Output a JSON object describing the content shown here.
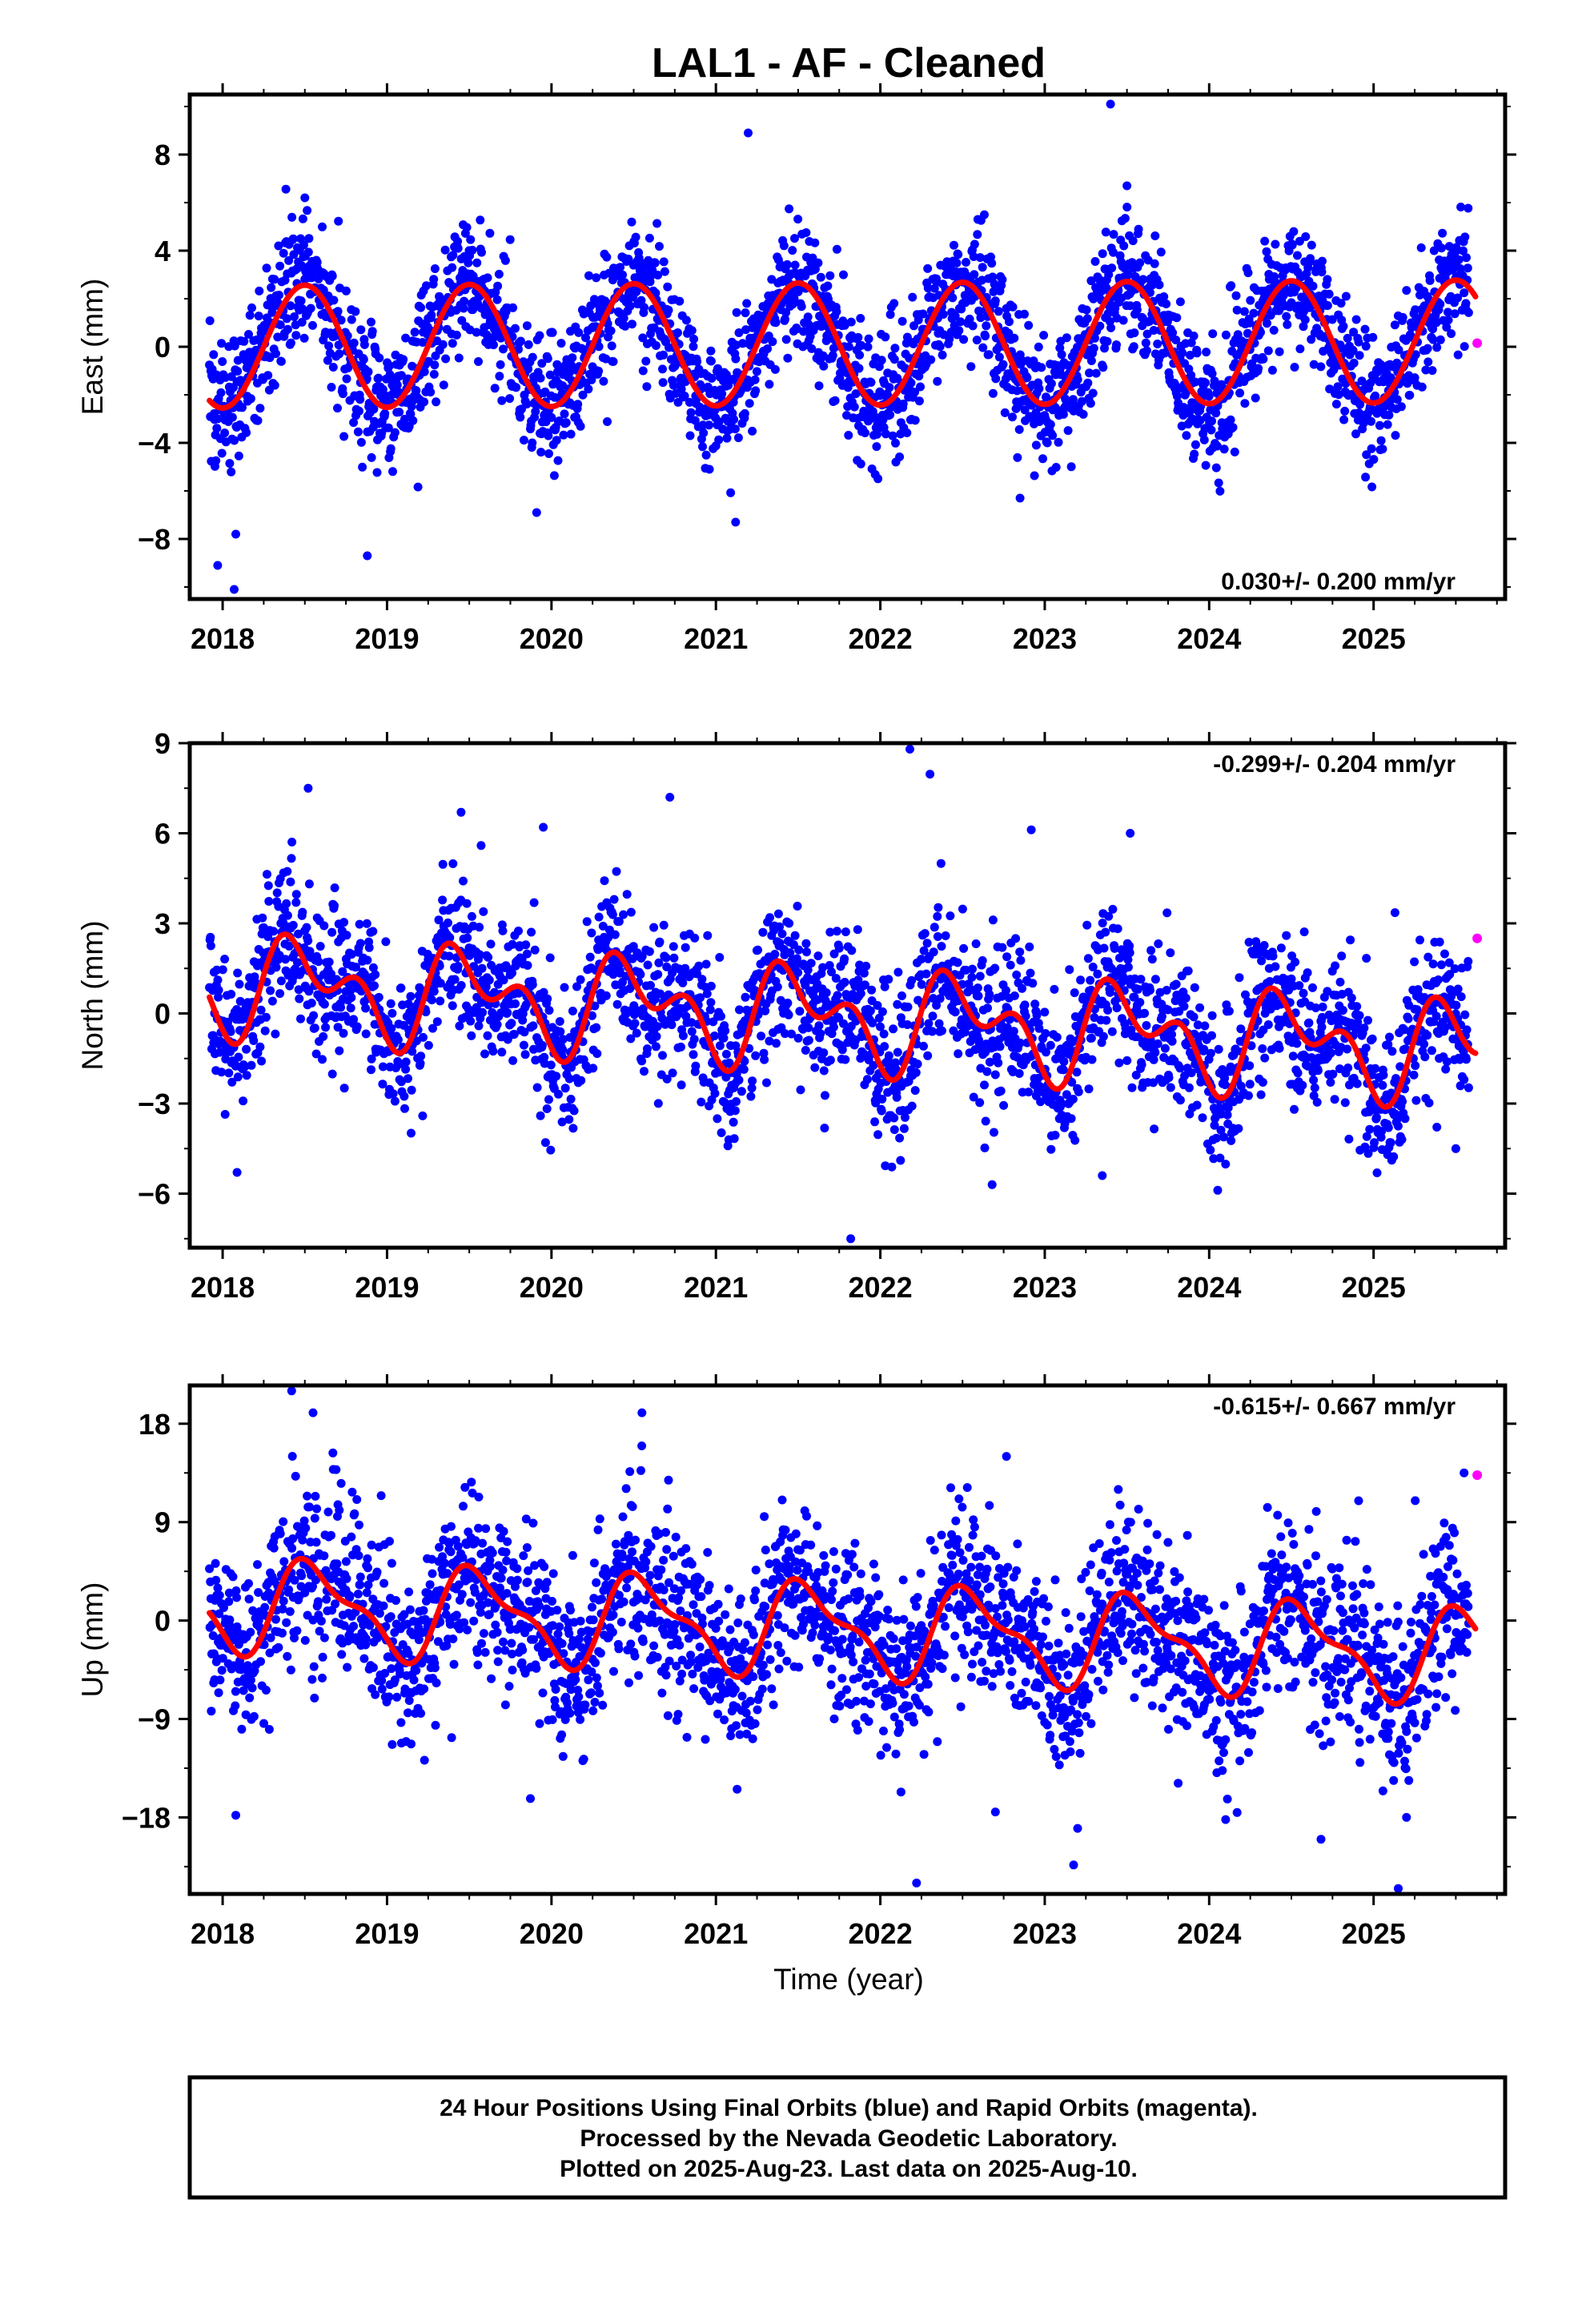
{
  "figure": {
    "title": "LAL1  - AF - Cleaned",
    "footer": [
      "24 Hour Positions Using Final Orbits (blue) and Rapid Orbits (magenta).",
      "Processed by the Nevada Geodetic Laboratory.",
      "Plotted on 2025-Aug-23. Last data on 2025-Aug-10."
    ],
    "colors": {
      "final": "#0000ff",
      "rapid": "#ff00ff",
      "model": "#ff0000",
      "frame": "#000000"
    }
  },
  "chart_data": [
    {
      "type": "scatter",
      "ylabel": "East (mm)",
      "xlabel": "",
      "xlim": [
        2017.8,
        2025.8
      ],
      "ylim": [
        -10.5,
        10.5
      ],
      "xticks": [
        2018,
        2019,
        2020,
        2021,
        2022,
        2023,
        2024,
        2025
      ],
      "yticks": [
        -8,
        -4,
        0,
        4,
        8
      ],
      "ytick_labels": [
        "−8",
        "−4",
        "0",
        "4",
        "8"
      ],
      "rate_text": "0.030+/- 0.200 mm/yr",
      "rate_position": "bottom-right",
      "grid": false,
      "series": [
        {
          "role": "final",
          "model": {
            "trend": 0.03,
            "offset": 0.0,
            "seasonal": [
              [
                1,
                0.0,
                -2.55
              ]
            ],
            "scatter_sd": 1.35,
            "outlier_rate": 0.012
          },
          "start": 2017.92,
          "end": 2025.58,
          "step": 0.0028,
          "outliers": [
            [
              2017.97,
              -9.1
            ],
            [
              2018.07,
              -10.1
            ],
            [
              2018.08,
              -7.8
            ],
            [
              2018.88,
              -8.7
            ],
            [
              2019.91,
              -6.9
            ],
            [
              2021.12,
              -7.3
            ],
            [
              2022.85,
              -6.3
            ],
            [
              2023.4,
              10.1
            ],
            [
              2023.5,
              6.7
            ],
            [
              2018.5,
              6.2
            ]
          ]
        },
        {
          "role": "rapid",
          "points": [
            [
              2025.63,
              0.15
            ]
          ]
        },
        {
          "role": "model",
          "model": {
            "trend": 0.03,
            "offset": 0.0,
            "seasonal": [
              [
                1,
                0.0,
                -2.55
              ]
            ]
          },
          "start": 2017.92,
          "end": 2025.62
        }
      ]
    },
    {
      "type": "scatter",
      "ylabel": "North (mm)",
      "xlabel": "",
      "xlim": [
        2017.8,
        2025.8
      ],
      "ylim": [
        -7.8,
        9.0
      ],
      "xticks": [
        2018,
        2019,
        2020,
        2021,
        2022,
        2023,
        2024,
        2025
      ],
      "yticks": [
        -6,
        -3,
        0,
        3,
        6,
        9
      ],
      "ytick_labels": [
        "−6",
        "−3",
        "0",
        "3",
        "6",
        "9"
      ],
      "rate_text": "-0.299+/- 0.204 mm/yr",
      "rate_position": "top-right",
      "grid": false,
      "series": [
        {
          "role": "final",
          "model": {
            "trend": -0.299,
            "offset": 1.0,
            "seasonal": [
              [
                1,
                0.0,
                -1.2
              ],
              [
                2,
                -0.9,
                -0.35
              ]
            ],
            "scatter_sd": 1.2,
            "outlier_rate": 0.01
          },
          "start": 2017.92,
          "end": 2025.58,
          "step": 0.0028,
          "outliers": [
            [
              2018.52,
              7.5
            ],
            [
              2019.45,
              6.7
            ],
            [
              2020.72,
              7.2
            ],
            [
              2022.18,
              8.8
            ],
            [
              2021.82,
              -7.5
            ],
            [
              2022.68,
              -5.7
            ],
            [
              2023.35,
              -5.4
            ],
            [
              2023.52,
              6.0
            ],
            [
              2025.5,
              -4.5
            ],
            [
              2019.95,
              6.2
            ]
          ]
        },
        {
          "role": "rapid",
          "points": [
            [
              2025.63,
              2.5
            ]
          ]
        },
        {
          "role": "model",
          "model": {
            "trend": -0.299,
            "offset": 1.0,
            "seasonal": [
              [
                1,
                0.0,
                -1.2
              ],
              [
                2,
                -0.9,
                -0.35
              ]
            ]
          },
          "start": 2017.92,
          "end": 2025.62
        }
      ]
    },
    {
      "type": "scatter",
      "ylabel": "Up (mm)",
      "xlabel": "Time (year)",
      "xlim": [
        2017.8,
        2025.8
      ],
      "ylim": [
        -25.0,
        21.5
      ],
      "xticks": [
        2018,
        2019,
        2020,
        2021,
        2022,
        2023,
        2024,
        2025
      ],
      "yticks": [
        -18,
        -9,
        0,
        9,
        18
      ],
      "ytick_labels": [
        "−18",
        "−9",
        "0",
        "9",
        "18"
      ],
      "rate_text": "-0.615+/- 0.667 mm/yr",
      "rate_position": "top-right",
      "grid": false,
      "series": [
        {
          "role": "final",
          "model": {
            "trend": -0.615,
            "offset": 1.5,
            "seasonal": [
              [
                1,
                -1.5,
                -3.5
              ],
              [
                2,
                -1.2,
                0.9
              ]
            ],
            "scatter_sd": 3.8,
            "outlier_rate": 0.01
          },
          "start": 2017.92,
          "end": 2025.58,
          "step": 0.0028,
          "outliers": [
            [
              2018.42,
              21.0
            ],
            [
              2018.55,
              19.0
            ],
            [
              2020.55,
              19.0
            ],
            [
              2018.08,
              -17.8
            ],
            [
              2022.22,
              -24.0
            ],
            [
              2022.7,
              -17.5
            ],
            [
              2023.2,
              -19.0
            ],
            [
              2024.1,
              -18.2
            ],
            [
              2024.68,
              -20.0
            ],
            [
              2025.15,
              -24.5
            ],
            [
              2025.2,
              -18.0
            ],
            [
              2025.55,
              13.5
            ]
          ]
        },
        {
          "role": "rapid",
          "points": [
            [
              2025.63,
              13.3
            ]
          ]
        },
        {
          "role": "model",
          "model": {
            "trend": -0.615,
            "offset": 1.5,
            "seasonal": [
              [
                1,
                -1.5,
                -3.5
              ],
              [
                2,
                -1.2,
                0.9
              ]
            ]
          },
          "start": 2017.92,
          "end": 2025.62
        }
      ]
    }
  ]
}
